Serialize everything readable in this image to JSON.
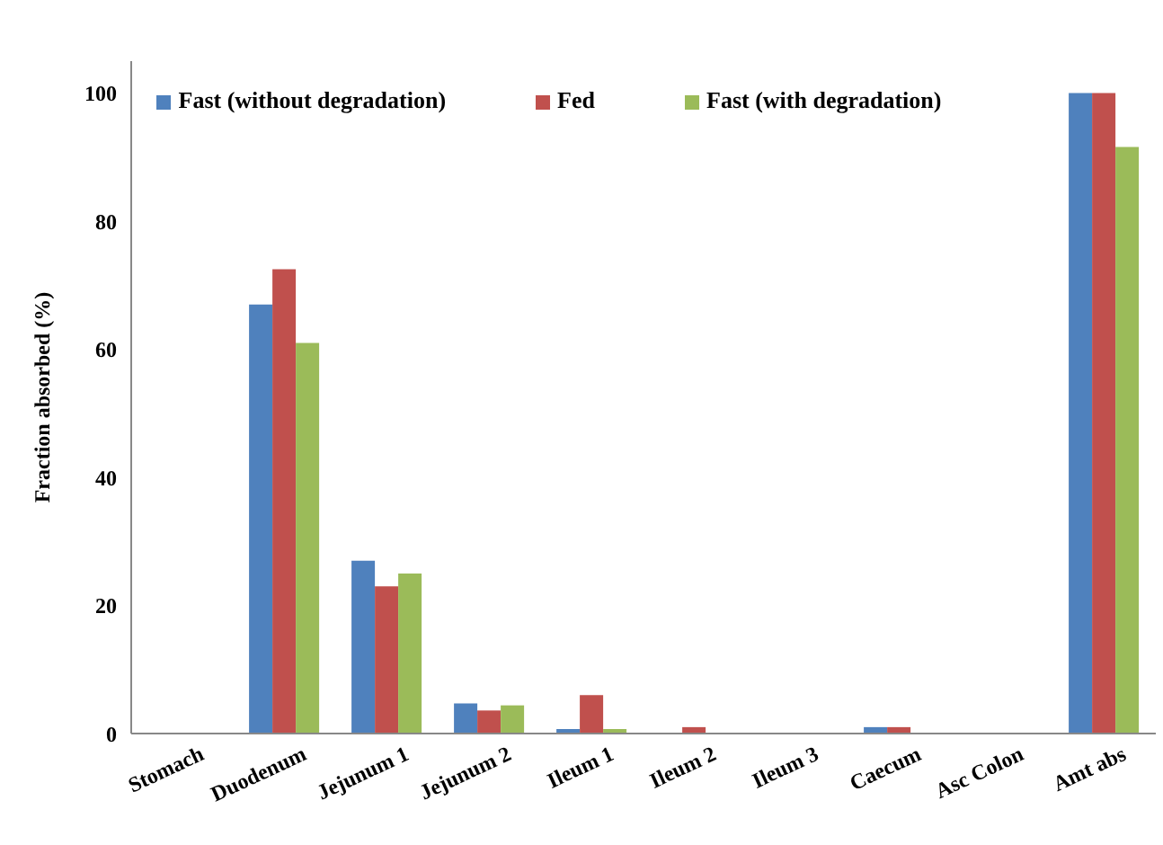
{
  "chart_data": {
    "type": "bar",
    "ylabel": "Fraction absorbed (%)",
    "categories": [
      "Stomach",
      "Duodenum",
      "Jejunum 1",
      "Jejunum 2",
      "Ileum 1",
      "Ileum 2",
      "Ileum 3",
      "Caecum",
      "Asc Colon",
      "Amt abs"
    ],
    "series": [
      {
        "name": "Fast (without degradation)",
        "color": "#4f81bd",
        "values": [
          0,
          67,
          27,
          4.7,
          0.7,
          0,
          0,
          1,
          0,
          100
        ]
      },
      {
        "name": "Fed",
        "color": "#c0504d",
        "values": [
          0,
          72.5,
          23,
          3.6,
          6,
          1,
          0,
          1,
          0,
          100
        ]
      },
      {
        "name": "Fast (with degradation)",
        "color": "#9bbb59",
        "values": [
          0,
          61,
          25,
          4.4,
          0.7,
          0,
          0,
          0,
          0,
          91.6
        ]
      }
    ],
    "ylim": [
      0,
      105
    ],
    "yticks": [
      0,
      20,
      40,
      60,
      80,
      100
    ],
    "grid": false,
    "legend": "top"
  }
}
